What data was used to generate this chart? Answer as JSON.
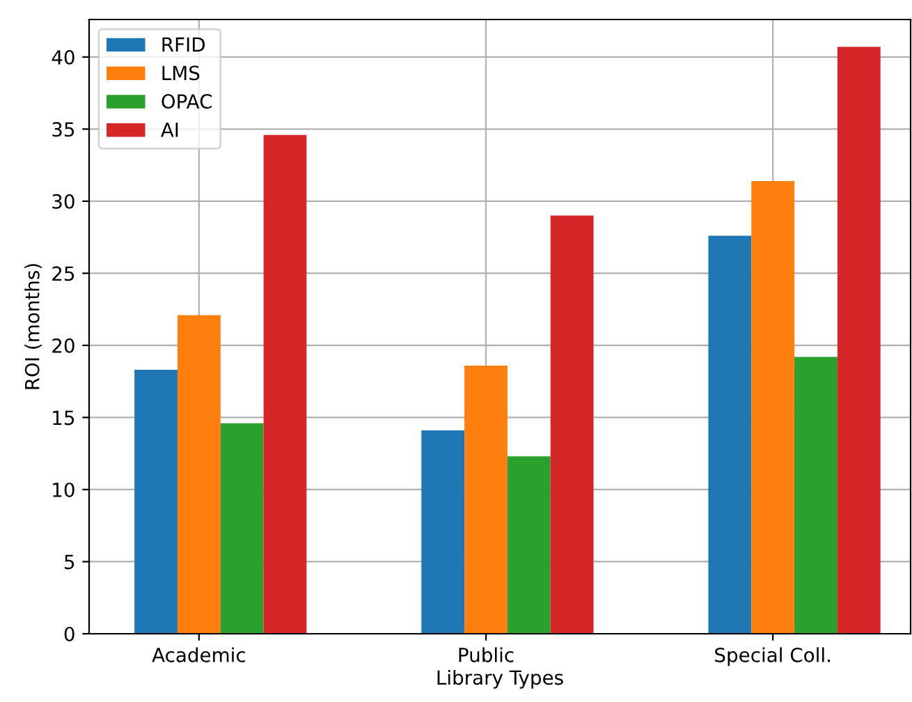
{
  "chart_data": {
    "type": "bar",
    "xlabel": "Library Types",
    "ylabel": "ROI (months)",
    "categories": [
      "Academic",
      "Public",
      "Special Coll."
    ],
    "series": [
      {
        "name": "RFID",
        "color": "#1f77b4",
        "values": [
          18.3,
          14.1,
          27.6
        ]
      },
      {
        "name": "LMS",
        "color": "#ff7f0e",
        "values": [
          22.1,
          18.6,
          31.4
        ]
      },
      {
        "name": "OPAC",
        "color": "#2ca02c",
        "values": [
          14.6,
          12.3,
          19.2
        ]
      },
      {
        "name": "AI",
        "color": "#d62728",
        "values": [
          34.6,
          29.0,
          40.7
        ]
      }
    ],
    "ylim": [
      0,
      42.6
    ],
    "yticks": [
      0,
      5,
      10,
      15,
      20,
      25,
      30,
      35,
      40
    ],
    "grid": true,
    "legend": "top left"
  }
}
